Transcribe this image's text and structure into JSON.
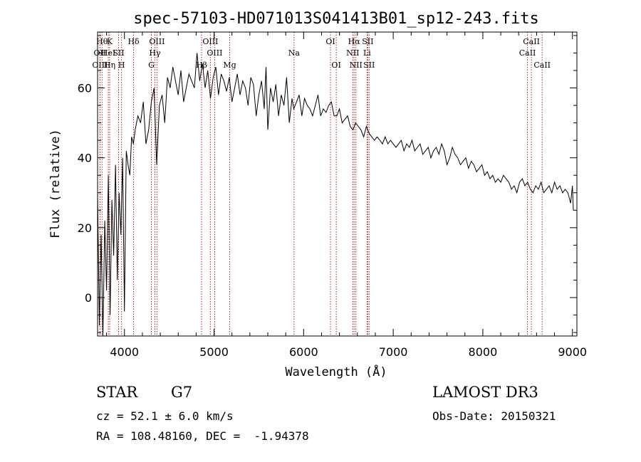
{
  "chart_data": {
    "type": "line",
    "title": "spec-57103-HD071013S041413B01_sp12-243.fits",
    "xlabel": "Wavelength (Å)",
    "ylabel": "Flux (relative)",
    "xlim": [
      3700,
      9050
    ],
    "ylim": [
      -11,
      76
    ],
    "xticks": [
      4000,
      5000,
      6000,
      7000,
      8000,
      9000
    ],
    "yticks": [
      0,
      20,
      40,
      60
    ],
    "grid": false,
    "series": [
      {
        "color": "#000000",
        "x": [
          3700,
          3720,
          3740,
          3760,
          3780,
          3800,
          3820,
          3840,
          3860,
          3880,
          3900,
          3920,
          3940,
          3960,
          3980,
          4000,
          4020,
          4040,
          4060,
          4080,
          4100,
          4120,
          4150,
          4180,
          4210,
          4240,
          4270,
          4300,
          4330,
          4360,
          4390,
          4420,
          4450,
          4480,
          4510,
          4540,
          4570,
          4600,
          4630,
          4660,
          4690,
          4720,
          4750,
          4780,
          4810,
          4840,
          4870,
          4900,
          4930,
          4960,
          4990,
          5020,
          5050,
          5080,
          5110,
          5140,
          5170,
          5200,
          5230,
          5260,
          5290,
          5320,
          5350,
          5380,
          5410,
          5440,
          5470,
          5500,
          5530,
          5560,
          5580,
          5600,
          5630,
          5660,
          5690,
          5720,
          5750,
          5780,
          5810,
          5840,
          5870,
          5890,
          5920,
          5950,
          5980,
          6010,
          6040,
          6070,
          6100,
          6130,
          6160,
          6190,
          6220,
          6250,
          6280,
          6310,
          6340,
          6370,
          6400,
          6430,
          6460,
          6490,
          6520,
          6550,
          6580,
          6610,
          6640,
          6670,
          6700,
          6730,
          6760,
          6790,
          6820,
          6850,
          6880,
          6910,
          6940,
          6970,
          7000,
          7030,
          7060,
          7090,
          7120,
          7150,
          7180,
          7210,
          7240,
          7270,
          7300,
          7330,
          7360,
          7390,
          7420,
          7450,
          7480,
          7510,
          7540,
          7570,
          7600,
          7630,
          7660,
          7690,
          7720,
          7750,
          7780,
          7810,
          7840,
          7870,
          7900,
          7930,
          7960,
          7990,
          8020,
          8050,
          8080,
          8110,
          8140,
          8170,
          8200,
          8230,
          8260,
          8290,
          8320,
          8350,
          8380,
          8410,
          8440,
          8470,
          8500,
          8530,
          8560,
          8590,
          8620,
          8650,
          8680,
          8710,
          8740,
          8770,
          8800,
          8830,
          8860,
          8890,
          8920,
          8950,
          8980,
          9000,
          9010
        ],
        "y": [
          30,
          -8,
          18,
          -11,
          22,
          2,
          35,
          -5,
          28,
          12,
          38,
          5,
          30,
          18,
          40,
          -4,
          42,
          38,
          35,
          46,
          44,
          48,
          52,
          50,
          56,
          44,
          48,
          56,
          60,
          38,
          55,
          58,
          50,
          63,
          60,
          66,
          62,
          58,
          65,
          56,
          60,
          64,
          62,
          60,
          70,
          62,
          67,
          60,
          65,
          57,
          63,
          66,
          58,
          64,
          62,
          59,
          63,
          56,
          60,
          64,
          58,
          62,
          60,
          55,
          63,
          61,
          52,
          58,
          62,
          54,
          66,
          48,
          60,
          56,
          61,
          52,
          58,
          55,
          63,
          50,
          57,
          54,
          56,
          58,
          52,
          57,
          55,
          54,
          52,
          55,
          58,
          52,
          54,
          53,
          55,
          56,
          52,
          52,
          54,
          50,
          51,
          52,
          49,
          48,
          50,
          49,
          48,
          46,
          49,
          47,
          46,
          45,
          46,
          45,
          44,
          46,
          44,
          45,
          44,
          43,
          44,
          45,
          42,
          44,
          43,
          45,
          42,
          43,
          44,
          41,
          42,
          43,
          40,
          42,
          43,
          41,
          44,
          42,
          38,
          40,
          43,
          41,
          40,
          38,
          39,
          40,
          37,
          39,
          38,
          36,
          37,
          38,
          35,
          36,
          34,
          35,
          33,
          34,
          33,
          35,
          34,
          33,
          31,
          32,
          30,
          33,
          34,
          32,
          33,
          31,
          30,
          32,
          31,
          33,
          30,
          31,
          32,
          30,
          33,
          31,
          32,
          30,
          31,
          30,
          27,
          32,
          25
        ]
      }
    ],
    "lines": [
      {
        "x": 3750,
        "label": "Hθ",
        "row": 1
      },
      {
        "x": 3727,
        "label": "OII",
        "row": 2
      },
      {
        "x": 3727,
        "label": "OIII",
        "row": 3
      },
      {
        "x": 3835,
        "label": "K",
        "row": 1
      },
      {
        "x": 3820,
        "label": "HeI",
        "row": 2
      },
      {
        "x": 3835,
        "label": "Hη",
        "row": 3
      },
      {
        "x": 3934,
        "label": "SII",
        "row": 2
      },
      {
        "x": 3968,
        "label": "H",
        "row": 3
      },
      {
        "x": 4102,
        "label": "Hδ",
        "row": 1
      },
      {
        "x": 4300,
        "label": "G",
        "row": 3
      },
      {
        "x": 4340,
        "label": "Hγ",
        "row": 2
      },
      {
        "x": 4363,
        "label": "OIII",
        "row": 1
      },
      {
        "x": 4861,
        "label": "Hβ",
        "row": 3
      },
      {
        "x": 4959,
        "label": "OIII",
        "row": 1
      },
      {
        "x": 5007,
        "label": "OIII",
        "row": 2
      },
      {
        "x": 5175,
        "label": "Mg",
        "row": 3
      },
      {
        "x": 5893,
        "label": "Na",
        "row": 2
      },
      {
        "x": 6300,
        "label": "OI",
        "row": 1
      },
      {
        "x": 6364,
        "label": "OI",
        "row": 3
      },
      {
        "x": 6548,
        "label": "NII",
        "row": 2
      },
      {
        "x": 6563,
        "label": "Hα",
        "row": 1
      },
      {
        "x": 6583,
        "label": "NII",
        "row": 3
      },
      {
        "x": 6708,
        "label": "Li",
        "row": 2
      },
      {
        "x": 6716,
        "label": "SII",
        "row": 1
      },
      {
        "x": 6731,
        "label": "SII",
        "row": 3
      },
      {
        "x": 8498,
        "label": "CaII",
        "row": 2
      },
      {
        "x": 8542,
        "label": "CaII",
        "row": 1
      },
      {
        "x": 8662,
        "label": "CaII",
        "row": 3
      }
    ]
  },
  "info": {
    "class": "STAR",
    "subclass": "G7",
    "cz": "cz = 52.1 ± 6.0 km/s",
    "radec": "RA = 108.48160, DEC =  -1.94378",
    "survey": "LAMOST DR3",
    "obsdate": "Obs-Date: 20150321"
  }
}
